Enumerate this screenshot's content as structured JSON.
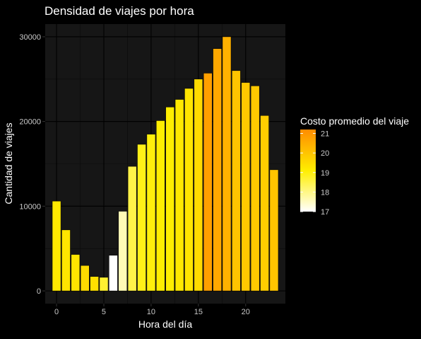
{
  "chart_data": {
    "type": "bar",
    "title": "Densidad de viajes por hora",
    "xlabel": "Hora del día",
    "ylabel": "Cantidad de viajes",
    "x": [
      0,
      1,
      2,
      3,
      4,
      5,
      6,
      7,
      8,
      9,
      10,
      11,
      12,
      13,
      14,
      15,
      16,
      17,
      18,
      19,
      20,
      21,
      22,
      23
    ],
    "values": [
      10600,
      7200,
      4300,
      3000,
      1700,
      1600,
      4200,
      9400,
      14700,
      17300,
      18500,
      20100,
      21700,
      22600,
      23900,
      25000,
      25700,
      28600,
      30000,
      26000,
      24600,
      24200,
      20700,
      14300
    ],
    "fill_values": [
      19.2,
      19.3,
      19.3,
      19.5,
      19.4,
      18.7,
      17.0,
      17.6,
      18.5,
      18.9,
      19.0,
      19.1,
      19.1,
      19.2,
      19.3,
      19.5,
      20.8,
      20.6,
      20.4,
      20.0,
      19.9,
      19.9,
      19.8,
      20.0
    ],
    "xlim": [
      -1.2,
      24.2
    ],
    "ylim": [
      -1500,
      31500
    ],
    "x_ticks": [
      0,
      5,
      10,
      15,
      20
    ],
    "x_tick_labels": [
      "0",
      "5",
      "10",
      "15",
      "20"
    ],
    "y_ticks": [
      0,
      10000,
      20000,
      30000
    ],
    "y_tick_labels": [
      "0",
      "10000",
      "20000",
      "30000"
    ],
    "grid": true,
    "legend": {
      "title": "Costo promedio del viaje",
      "position": "right",
      "range": [
        17,
        21.2
      ],
      "breaks": [
        17,
        18,
        19,
        20,
        21
      ],
      "break_labels": [
        "17",
        "18",
        "19",
        "20",
        "21"
      ]
    },
    "colors": {
      "background": "#000000",
      "panel": "#161616",
      "grid_major": "#000000",
      "grid_minor": "#0b0b0b",
      "bar_outline": "#000000",
      "text": "#ffffff",
      "tick_text": "#c8c8c8",
      "scale_low": "#ffffff",
      "scale_mid": "#ffee00",
      "scale_high": "#ff8c00"
    }
  }
}
